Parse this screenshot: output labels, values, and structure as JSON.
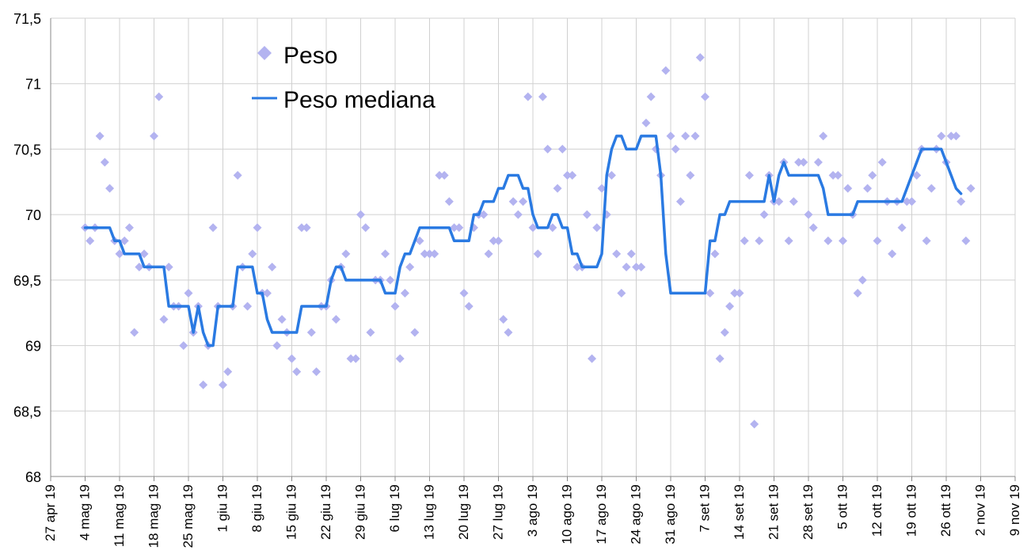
{
  "chart_data": {
    "type": "scatter",
    "x_ticks": [
      "27 apr 19",
      "4 mag 19",
      "11 mag 19",
      "18 mag 19",
      "25 mag 19",
      "1 giu 19",
      "8 giu 19",
      "15 giu 19",
      "22 giu 19",
      "29 giu 19",
      "6 lug 19",
      "13 lug 19",
      "20 lug 19",
      "27 lug 19",
      "3 ago 19",
      "10 ago 19",
      "17 ago 19",
      "24 ago 19",
      "31 ago 19",
      "7 set 19",
      "14 set 19",
      "21 set 19",
      "28 set 19",
      "5 ott 19",
      "12 ott 19",
      "19 ott 19",
      "26 ott 19",
      "2 nov 19",
      "9 nov 19"
    ],
    "y_ticks": [
      "68",
      "68,5",
      "69",
      "69,5",
      "70",
      "70,5",
      "71",
      "71,5"
    ],
    "ylim": [
      68,
      71.5
    ],
    "grid": true,
    "legend_position": "top-left",
    "colors": {
      "points": "#b3b3f0",
      "line": "#2a7ae2",
      "grid": "#d0d0d0"
    },
    "series": [
      {
        "name": "Peso",
        "kind": "points",
        "start": "2019-05-04",
        "values": [
          69.9,
          69.8,
          69.9,
          70.6,
          70.4,
          70.2,
          69.8,
          69.7,
          69.8,
          69.9,
          69.1,
          69.6,
          69.7,
          69.6,
          70.6,
          70.9,
          69.2,
          69.6,
          69.3,
          69.3,
          69.0,
          69.4,
          69.1,
          69.3,
          68.7,
          69.0,
          69.9,
          69.3,
          68.7,
          68.8,
          69.3,
          70.3,
          69.6,
          69.3,
          69.7,
          69.9,
          69.4,
          69.4,
          69.6,
          69.0,
          69.2,
          69.1,
          68.9,
          68.8,
          69.9,
          69.9,
          69.1,
          68.8,
          69.3,
          69.3,
          69.5,
          69.2,
          69.6,
          69.7,
          68.9,
          68.9,
          70.0,
          69.9,
          69.1,
          69.5,
          69.5,
          69.7,
          69.5,
          69.3,
          68.9,
          69.4,
          69.6,
          69.1,
          69.8,
          69.7,
          69.7,
          69.7,
          70.3,
          70.3,
          70.1,
          69.9,
          69.9,
          69.4,
          69.3,
          69.9,
          70.0,
          70.0,
          69.7,
          69.8,
          69.8,
          69.2,
          69.1,
          70.1,
          70.0,
          70.1,
          70.9,
          69.9,
          69.7,
          70.9,
          70.5,
          69.9,
          70.2,
          70.5,
          70.3,
          70.3,
          69.6,
          69.6,
          70.0,
          68.9,
          69.9,
          70.2,
          70.0,
          70.3,
          69.7,
          69.4,
          69.6,
          69.7,
          69.6,
          69.6,
          70.7,
          70.9,
          70.5,
          70.3,
          71.1,
          70.6,
          70.5,
          70.1,
          70.6,
          70.3,
          70.6,
          71.2,
          70.9,
          69.4,
          69.7,
          68.9,
          69.1,
          69.3,
          69.4,
          69.4,
          69.8,
          70.3,
          68.4,
          69.8,
          70.0,
          70.3,
          70.1,
          70.1,
          70.4,
          69.8,
          70.1,
          70.4,
          70.4,
          70.0,
          69.9,
          70.4,
          70.6,
          69.8,
          70.3,
          70.3,
          69.8,
          70.2,
          70.0,
          69.4,
          69.5,
          70.2,
          70.3,
          69.8,
          70.4,
          70.1,
          69.7,
          70.1,
          69.9,
          70.1,
          70.1,
          70.3,
          70.5,
          69.8,
          70.2,
          70.5,
          70.6,
          70.4,
          70.6,
          70.6,
          70.1,
          69.8,
          70.2
        ]
      },
      {
        "name": "Peso mediana",
        "kind": "line",
        "start": "2019-05-04",
        "values": [
          69.9,
          69.9,
          69.9,
          69.9,
          69.9,
          69.9,
          69.8,
          69.8,
          69.7,
          69.7,
          69.7,
          69.7,
          69.6,
          69.6,
          69.6,
          69.6,
          69.6,
          69.3,
          69.3,
          69.3,
          69.3,
          69.3,
          69.1,
          69.3,
          69.1,
          69.0,
          69.0,
          69.3,
          69.3,
          69.3,
          69.3,
          69.6,
          69.6,
          69.6,
          69.6,
          69.4,
          69.4,
          69.2,
          69.1,
          69.1,
          69.1,
          69.1,
          69.1,
          69.1,
          69.3,
          69.3,
          69.3,
          69.3,
          69.3,
          69.3,
          69.5,
          69.6,
          69.6,
          69.5,
          69.5,
          69.5,
          69.5,
          69.5,
          69.5,
          69.5,
          69.5,
          69.4,
          69.4,
          69.4,
          69.6,
          69.7,
          69.7,
          69.8,
          69.9,
          69.9,
          69.9,
          69.9,
          69.9,
          69.9,
          69.9,
          69.8,
          69.8,
          69.8,
          69.8,
          70.0,
          70.0,
          70.1,
          70.1,
          70.1,
          70.2,
          70.2,
          70.3,
          70.3,
          70.3,
          70.2,
          70.2,
          70.0,
          69.9,
          69.9,
          69.9,
          70.0,
          70.0,
          69.9,
          69.9,
          69.7,
          69.7,
          69.6,
          69.6,
          69.6,
          69.6,
          69.7,
          70.3,
          70.5,
          70.6,
          70.6,
          70.5,
          70.5,
          70.5,
          70.6,
          70.6,
          70.6,
          70.6,
          70.3,
          69.7,
          69.4,
          69.4,
          69.4,
          69.4,
          69.4,
          69.4,
          69.4,
          69.4,
          69.8,
          69.8,
          70.0,
          70.0,
          70.1,
          70.1,
          70.1,
          70.1,
          70.1,
          70.1,
          70.1,
          70.1,
          70.3,
          70.1,
          70.3,
          70.4,
          70.3,
          70.3,
          70.3,
          70.3,
          70.3,
          70.3,
          70.3,
          70.2,
          70.0,
          70.0,
          70.0,
          70.0,
          70.0,
          70.0,
          70.1,
          70.1,
          70.1,
          70.1,
          70.1,
          70.1,
          70.1,
          70.1,
          70.1,
          70.1,
          70.2,
          70.3,
          70.4,
          70.5,
          70.5,
          70.5,
          70.5,
          70.5,
          70.4,
          70.3,
          70.2,
          70.16
        ]
      }
    ]
  }
}
